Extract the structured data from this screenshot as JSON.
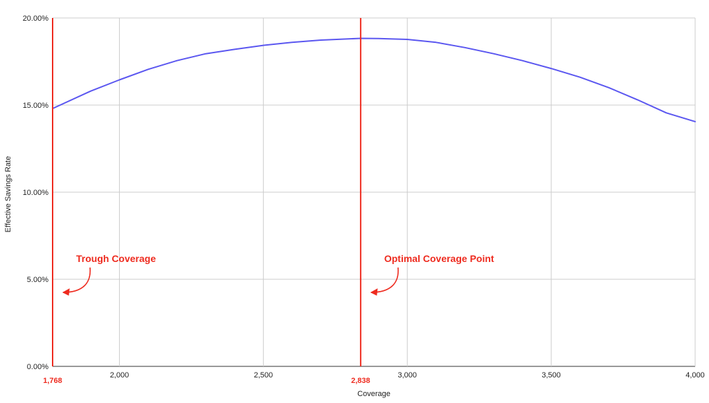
{
  "chart_data": {
    "type": "line",
    "title": "",
    "xlabel": "Coverage",
    "ylabel": "Effective Savings Rate",
    "xlim": [
      1768,
      4000
    ],
    "ylim": [
      0,
      20
    ],
    "grid": true,
    "legend": "none",
    "x_ticks": [
      2000,
      2500,
      3000,
      3500,
      4000
    ],
    "x_tick_labels": [
      "2,000",
      "2,500",
      "3,000",
      "3,500",
      "4,000"
    ],
    "y_ticks": [
      0,
      5,
      10,
      15,
      20
    ],
    "y_tick_labels": [
      "0.00%",
      "5.00%",
      "10.00%",
      "15.00%",
      "20.00%"
    ],
    "series": [
      {
        "color": "#5b57f0",
        "x": [
          1768,
          1900,
          2000,
          2100,
          2200,
          2300,
          2400,
          2500,
          2600,
          2700,
          2838,
          2900,
          3000,
          3100,
          3200,
          3300,
          3400,
          3500,
          3600,
          3700,
          3800,
          3900,
          4000
        ],
        "y": [
          14.8,
          15.8,
          16.45,
          17.05,
          17.55,
          17.95,
          18.2,
          18.43,
          18.6,
          18.73,
          18.83,
          18.82,
          18.77,
          18.6,
          18.3,
          17.95,
          17.55,
          17.1,
          16.6,
          16.0,
          15.3,
          14.55,
          14.05
        ]
      }
    ],
    "markers": [
      {
        "x": 1768,
        "label": "1,768",
        "annotation": "Trough Coverage",
        "color": "#ee2b1f"
      },
      {
        "x": 2838,
        "label": "2,838",
        "annotation": "Optimal Coverage Point",
        "color": "#ee2b1f"
      }
    ]
  }
}
